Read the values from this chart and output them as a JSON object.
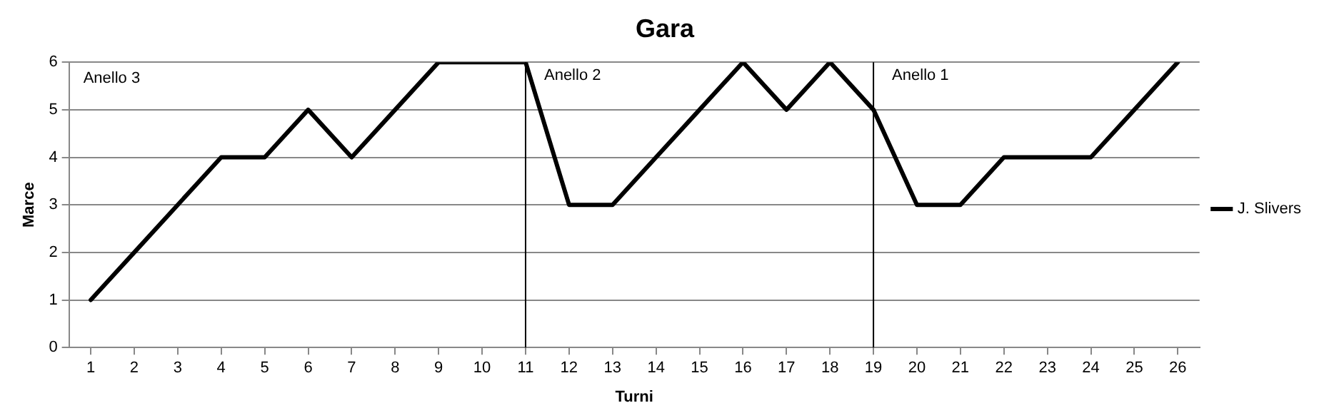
{
  "chart_data": {
    "type": "line",
    "title": "Gara",
    "xlabel": "Turni",
    "ylabel": "Marce",
    "x": [
      1,
      2,
      3,
      4,
      5,
      6,
      7,
      8,
      9,
      10,
      11,
      12,
      13,
      14,
      15,
      16,
      17,
      18,
      19,
      20,
      21,
      22,
      23,
      24,
      25,
      26
    ],
    "series": [
      {
        "name": "J. Slivers",
        "color": "#000000",
        "values": [
          1,
          2,
          3,
          4,
          4,
          5,
          4,
          5,
          6,
          6,
          6,
          3,
          3,
          4,
          5,
          6,
          5,
          6,
          5,
          3,
          3,
          4,
          4,
          4,
          5,
          6
        ]
      }
    ],
    "xlim": [
      0.5,
      26.5
    ],
    "xticks": [
      1,
      2,
      3,
      4,
      5,
      6,
      7,
      8,
      9,
      10,
      11,
      12,
      13,
      14,
      15,
      16,
      17,
      18,
      19,
      20,
      21,
      22,
      23,
      24,
      25,
      26
    ],
    "ylim": [
      0,
      6
    ],
    "yticks": [
      0,
      1,
      2,
      3,
      4,
      5,
      6
    ],
    "ref_lines": [
      {
        "axis": "x",
        "value": 11,
        "label": "Anello 2",
        "color": "#000000"
      },
      {
        "axis": "x",
        "value": 19,
        "label": "Anello 1",
        "color": "#000000"
      }
    ],
    "annotations": [
      "Anello 3"
    ],
    "grid": "y",
    "legend": "right",
    "marker": "none",
    "line_style": "solid"
  }
}
